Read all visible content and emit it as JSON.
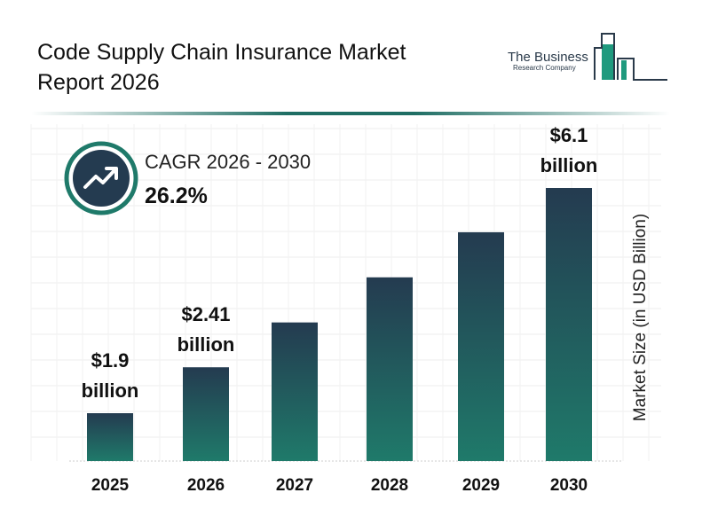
{
  "header": {
    "title": "Code Supply Chain Insurance Market Report 2026"
  },
  "logo": {
    "line1": "The Business",
    "line2": "Research Company"
  },
  "cagr": {
    "label": "CAGR 2026 - 2030",
    "value": "26.2%",
    "icon": "trend-up-icon"
  },
  "colors": {
    "bar_top": "#243b50",
    "bar_bottom": "#1f7a6a",
    "accent": "#1f7a6a"
  },
  "chart_data": {
    "type": "bar",
    "categories": [
      "2025",
      "2026",
      "2027",
      "2028",
      "2029",
      "2030"
    ],
    "values": [
      1.9,
      2.41,
      3.04,
      3.84,
      4.85,
      6.1
    ],
    "data_labels": [
      [
        "$1.9",
        "billion"
      ],
      [
        "$2.41",
        "billion"
      ],
      null,
      null,
      null,
      [
        "$6.1",
        "billion"
      ]
    ],
    "ylabel": "Market Size (in USD Billion)",
    "xlabel": "",
    "grid": true,
    "unit": "USD billion"
  }
}
